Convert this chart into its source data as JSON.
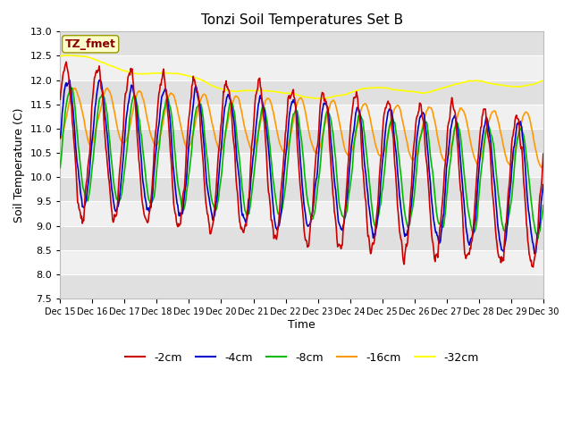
{
  "title": "Tonzi Soil Temperatures Set B",
  "xlabel": "Time",
  "ylabel": "Soil Temperature (C)",
  "ylim": [
    7.5,
    13.0
  ],
  "yticks": [
    7.5,
    8.0,
    8.5,
    9.0,
    9.5,
    10.0,
    10.5,
    11.0,
    11.5,
    12.0,
    12.5,
    13.0
  ],
  "x_labels": [
    "Dec 15",
    "Dec 16",
    "Dec 17",
    "Dec 18",
    "Dec 19",
    "Dec 20",
    "Dec 21",
    "Dec 22",
    "Dec 23",
    "Dec 24",
    "Dec 25",
    "Dec 26",
    "Dec 27",
    "Dec 28",
    "Dec 29",
    "Dec 30"
  ],
  "colors": {
    "2cm": "#cc0000",
    "4cm": "#0000cc",
    "8cm": "#00bb00",
    "16cm": "#ff9900",
    "32cm": "#ffff00"
  },
  "fig_bg": "#ffffff",
  "plot_bg": "#ffffff",
  "band_dark": "#e0e0e0",
  "band_light": "#f0f0f0",
  "annotation_box_color": "#ffffcc",
  "annotation_text_color": "#880000",
  "annotation_text": "TZ_fmet",
  "num_points": 720,
  "n_days": 15
}
